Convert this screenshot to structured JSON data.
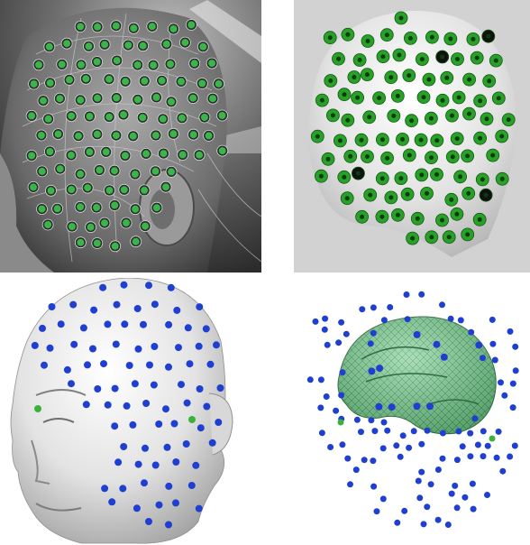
{
  "panels": [
    {
      "id": "photo-eeg-cap",
      "kind": "photograph",
      "electrode_color": "#39b54a"
    },
    {
      "id": "3d-electrode-model",
      "kind": "rendering",
      "background": "#d2d2d2",
      "electrode_color": "#2aa02a"
    },
    {
      "id": "head-surface-electrodes",
      "kind": "rendering",
      "surface_color": "#e6e6e6",
      "electrode_color": "#1f3fd0",
      "fiducial_color": "#3bb33b"
    },
    {
      "id": "brain-surface-electrodes",
      "kind": "rendering",
      "surface_color": "#6fc486",
      "electrode_color": "#1f3fd0",
      "fiducial_color": "#3bb33b"
    }
  ]
}
